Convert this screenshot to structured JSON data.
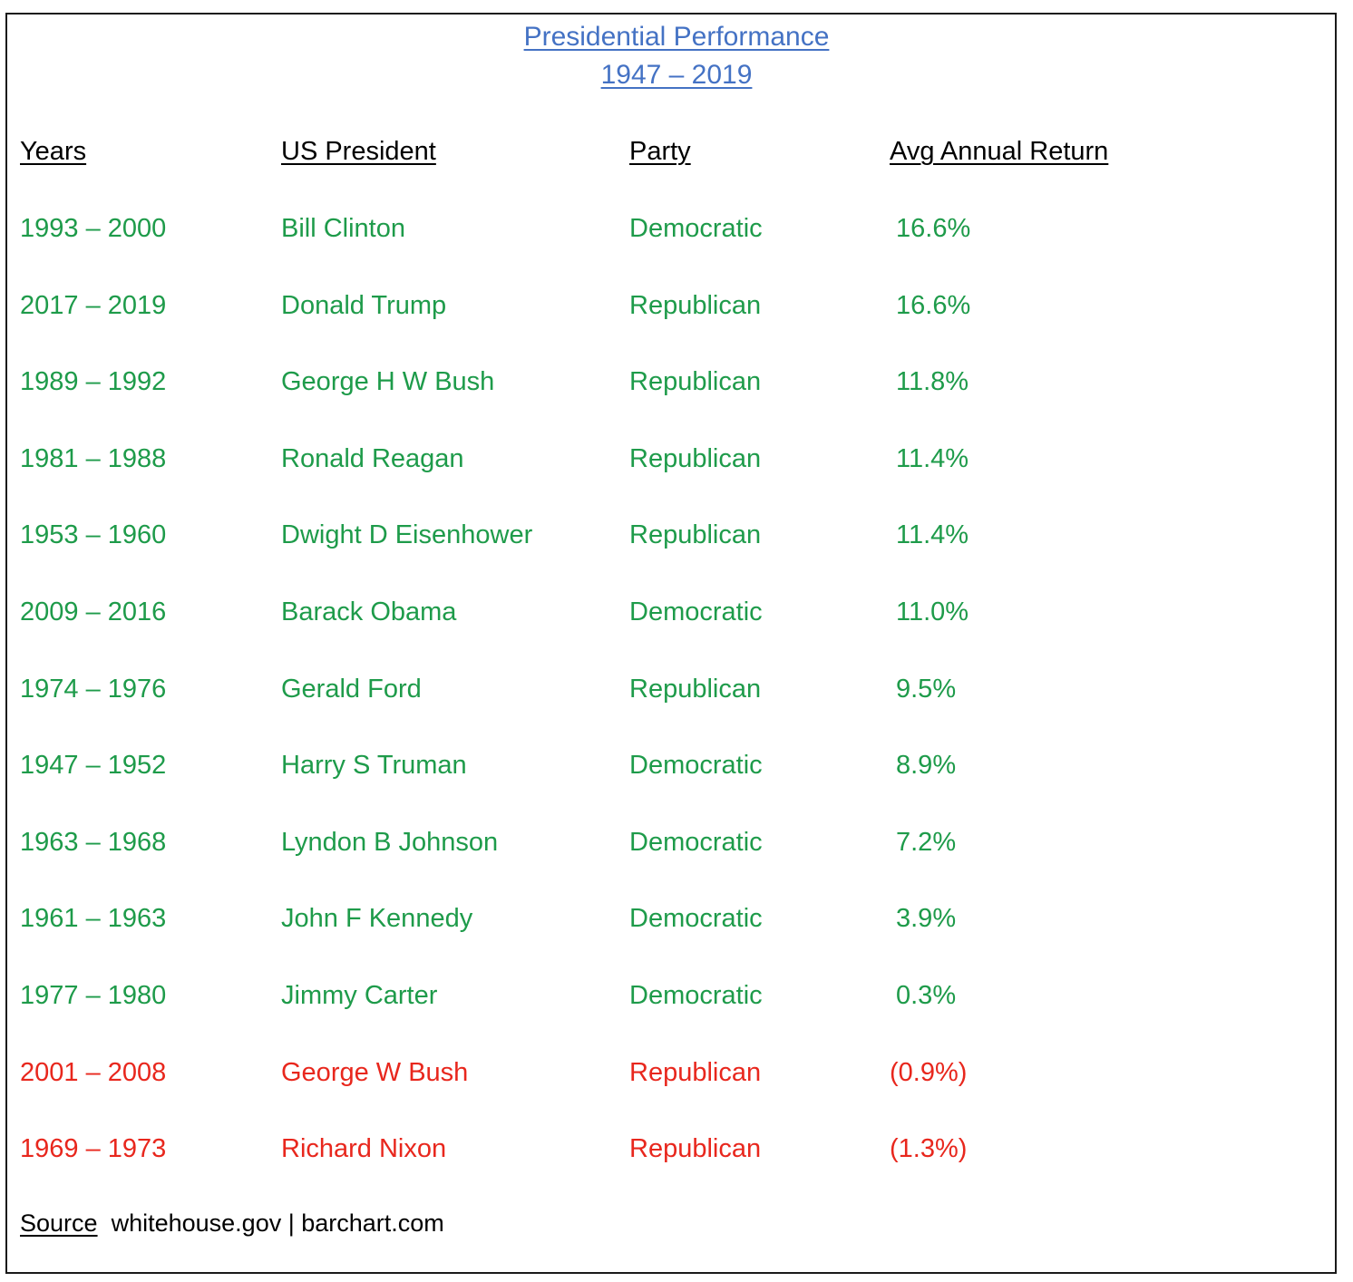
{
  "title": {
    "line1": "Presidential Performance",
    "line2": "1947 – 2019"
  },
  "headers": {
    "years": "Years",
    "president": "US President",
    "party": "Party",
    "avg_return": "Avg Annual Return"
  },
  "colors": {
    "title": "#4472c4",
    "positive": "#1e9b4a",
    "negative": "#e8271d"
  },
  "rows": [
    {
      "years": "1993 – 2000",
      "president": "Bill Clinton",
      "party": "Democratic",
      "avg_return": "16.6%",
      "sign": "positive"
    },
    {
      "years": "2017 – 2019",
      "president": "Donald Trump",
      "party": "Republican",
      "avg_return": "16.6%",
      "sign": "positive"
    },
    {
      "years": "1989 – 1992",
      "president": "George H W Bush",
      "party": "Republican",
      "avg_return": "11.8%",
      "sign": "positive"
    },
    {
      "years": "1981 – 1988",
      "president": "Ronald Reagan",
      "party": "Republican",
      "avg_return": "11.4%",
      "sign": "positive"
    },
    {
      "years": "1953 – 1960",
      "president": "Dwight D Eisenhower",
      "party": "Republican",
      "avg_return": "11.4%",
      "sign": "positive"
    },
    {
      "years": "2009 – 2016",
      "president": "Barack Obama",
      "party": "Democratic",
      "avg_return": "11.0%",
      "sign": "positive"
    },
    {
      "years": "1974 – 1976",
      "president": "Gerald Ford",
      "party": "Republican",
      "avg_return": "9.5%",
      "sign": "positive"
    },
    {
      "years": "1947 – 1952",
      "president": "Harry S Truman",
      "party": "Democratic",
      "avg_return": "8.9%",
      "sign": "positive"
    },
    {
      "years": "1963 – 1968",
      "president": "Lyndon B Johnson",
      "party": "Democratic",
      "avg_return": "7.2%",
      "sign": "positive"
    },
    {
      "years": "1961 – 1963",
      "president": "John F Kennedy",
      "party": "Democratic",
      "avg_return": "3.9%",
      "sign": "positive"
    },
    {
      "years": "1977 – 1980",
      "president": "Jimmy Carter",
      "party": "Democratic",
      "avg_return": "0.3%",
      "sign": "positive"
    },
    {
      "years": "2001 – 2008",
      "president": "George W Bush",
      "party": "Republican",
      "avg_return": "(0.9%)",
      "sign": "negative"
    },
    {
      "years": "1969 – 1973",
      "president": "Richard Nixon",
      "party": "Republican",
      "avg_return": "(1.3%)",
      "sign": "negative"
    }
  ],
  "source": {
    "label": "Source",
    "text": "whitehouse.gov | barchart.com"
  }
}
